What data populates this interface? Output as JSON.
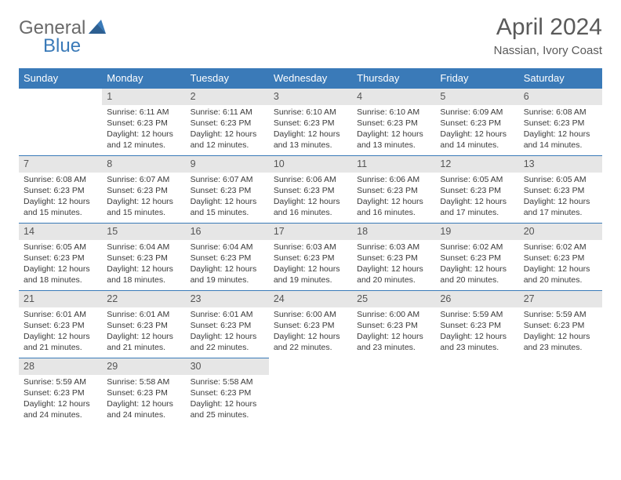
{
  "logo": {
    "textGray": "General",
    "textBlue": "Blue"
  },
  "title": "April 2024",
  "subtitle": "Nassian, Ivory Coast",
  "colors": {
    "headerBar": "#3a7ab8",
    "dayNumBg": "#e6e6e6",
    "titleText": "#5a5a5a",
    "bodyText": "#3a3a3a",
    "logoGray": "#6a6a6a",
    "logoBlue": "#3a7ab8"
  },
  "weekdays": [
    "Sunday",
    "Monday",
    "Tuesday",
    "Wednesday",
    "Thursday",
    "Friday",
    "Saturday"
  ],
  "startOffset": 1,
  "daysInMonth": 30,
  "days": {
    "1": {
      "sunrise": "6:11 AM",
      "sunset": "6:23 PM",
      "daylight": "12 hours and 12 minutes."
    },
    "2": {
      "sunrise": "6:11 AM",
      "sunset": "6:23 PM",
      "daylight": "12 hours and 12 minutes."
    },
    "3": {
      "sunrise": "6:10 AM",
      "sunset": "6:23 PM",
      "daylight": "12 hours and 13 minutes."
    },
    "4": {
      "sunrise": "6:10 AM",
      "sunset": "6:23 PM",
      "daylight": "12 hours and 13 minutes."
    },
    "5": {
      "sunrise": "6:09 AM",
      "sunset": "6:23 PM",
      "daylight": "12 hours and 14 minutes."
    },
    "6": {
      "sunrise": "6:08 AM",
      "sunset": "6:23 PM",
      "daylight": "12 hours and 14 minutes."
    },
    "7": {
      "sunrise": "6:08 AM",
      "sunset": "6:23 PM",
      "daylight": "12 hours and 15 minutes."
    },
    "8": {
      "sunrise": "6:07 AM",
      "sunset": "6:23 PM",
      "daylight": "12 hours and 15 minutes."
    },
    "9": {
      "sunrise": "6:07 AM",
      "sunset": "6:23 PM",
      "daylight": "12 hours and 15 minutes."
    },
    "10": {
      "sunrise": "6:06 AM",
      "sunset": "6:23 PM",
      "daylight": "12 hours and 16 minutes."
    },
    "11": {
      "sunrise": "6:06 AM",
      "sunset": "6:23 PM",
      "daylight": "12 hours and 16 minutes."
    },
    "12": {
      "sunrise": "6:05 AM",
      "sunset": "6:23 PM",
      "daylight": "12 hours and 17 minutes."
    },
    "13": {
      "sunrise": "6:05 AM",
      "sunset": "6:23 PM",
      "daylight": "12 hours and 17 minutes."
    },
    "14": {
      "sunrise": "6:05 AM",
      "sunset": "6:23 PM",
      "daylight": "12 hours and 18 minutes."
    },
    "15": {
      "sunrise": "6:04 AM",
      "sunset": "6:23 PM",
      "daylight": "12 hours and 18 minutes."
    },
    "16": {
      "sunrise": "6:04 AM",
      "sunset": "6:23 PM",
      "daylight": "12 hours and 19 minutes."
    },
    "17": {
      "sunrise": "6:03 AM",
      "sunset": "6:23 PM",
      "daylight": "12 hours and 19 minutes."
    },
    "18": {
      "sunrise": "6:03 AM",
      "sunset": "6:23 PM",
      "daylight": "12 hours and 20 minutes."
    },
    "19": {
      "sunrise": "6:02 AM",
      "sunset": "6:23 PM",
      "daylight": "12 hours and 20 minutes."
    },
    "20": {
      "sunrise": "6:02 AM",
      "sunset": "6:23 PM",
      "daylight": "12 hours and 20 minutes."
    },
    "21": {
      "sunrise": "6:01 AM",
      "sunset": "6:23 PM",
      "daylight": "12 hours and 21 minutes."
    },
    "22": {
      "sunrise": "6:01 AM",
      "sunset": "6:23 PM",
      "daylight": "12 hours and 21 minutes."
    },
    "23": {
      "sunrise": "6:01 AM",
      "sunset": "6:23 PM",
      "daylight": "12 hours and 22 minutes."
    },
    "24": {
      "sunrise": "6:00 AM",
      "sunset": "6:23 PM",
      "daylight": "12 hours and 22 minutes."
    },
    "25": {
      "sunrise": "6:00 AM",
      "sunset": "6:23 PM",
      "daylight": "12 hours and 23 minutes."
    },
    "26": {
      "sunrise": "5:59 AM",
      "sunset": "6:23 PM",
      "daylight": "12 hours and 23 minutes."
    },
    "27": {
      "sunrise": "5:59 AM",
      "sunset": "6:23 PM",
      "daylight": "12 hours and 23 minutes."
    },
    "28": {
      "sunrise": "5:59 AM",
      "sunset": "6:23 PM",
      "daylight": "12 hours and 24 minutes."
    },
    "29": {
      "sunrise": "5:58 AM",
      "sunset": "6:23 PM",
      "daylight": "12 hours and 24 minutes."
    },
    "30": {
      "sunrise": "5:58 AM",
      "sunset": "6:23 PM",
      "daylight": "12 hours and 25 minutes."
    }
  },
  "labels": {
    "sunrise": "Sunrise: ",
    "sunset": "Sunset: ",
    "daylight": "Daylight: "
  }
}
